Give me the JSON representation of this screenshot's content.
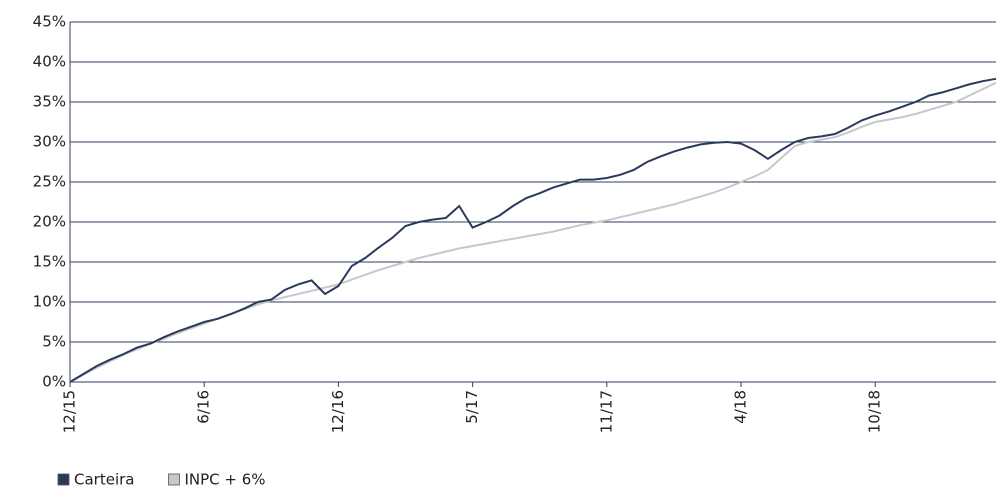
{
  "chart_data": {
    "type": "line",
    "categories": [
      "12/15",
      null,
      null,
      null,
      null,
      null,
      null,
      null,
      null,
      null,
      "6/16",
      null,
      null,
      null,
      null,
      null,
      null,
      null,
      null,
      null,
      "12/16",
      null,
      null,
      null,
      null,
      null,
      null,
      null,
      null,
      null,
      "5/17",
      null,
      null,
      null,
      null,
      null,
      null,
      null,
      null,
      null,
      "11/17",
      null,
      null,
      null,
      null,
      null,
      null,
      null,
      null,
      null,
      "4/18",
      null,
      null,
      null,
      null,
      null,
      null,
      null,
      null,
      null,
      "10/18",
      null,
      null,
      null,
      null,
      null,
      null,
      null,
      null,
      null
    ],
    "series": [
      {
        "name": "Carteira",
        "color": "#2b3a5c",
        "values": [
          0,
          1.0,
          2.0,
          2.8,
          3.5,
          4.3,
          4.8,
          5.6,
          6.3,
          6.9,
          7.5,
          7.9,
          8.5,
          9.2,
          10.0,
          10.3,
          11.5,
          12.2,
          12.7,
          11.0,
          12.0,
          14.5,
          15.5,
          16.8,
          18.0,
          19.5,
          20.0,
          20.3,
          20.5,
          22.0,
          19.3,
          20.0,
          20.8,
          22.0,
          23.0,
          23.6,
          24.3,
          24.8,
          25.3,
          25.3,
          25.5,
          25.9,
          26.5,
          27.5,
          28.2,
          28.8,
          29.3,
          29.7,
          29.9,
          30.0,
          29.8,
          29.0,
          27.9,
          29.0,
          30.0,
          30.5,
          30.7,
          31.0,
          31.8,
          32.7,
          33.3,
          33.8,
          34.4,
          35.0,
          35.8,
          36.2,
          36.7,
          37.2,
          37.6,
          37.9
        ]
      },
      {
        "name": "INPC + 6%",
        "color": "#c8c8c8",
        "values": [
          0,
          0.9,
          1.8,
          2.6,
          3.4,
          4.1,
          4.8,
          5.4,
          6.1,
          6.7,
          7.3,
          7.9,
          8.5,
          9.1,
          9.7,
          10.2,
          10.6,
          11.0,
          11.4,
          11.8,
          12.2,
          12.8,
          13.4,
          14.0,
          14.5,
          15.0,
          15.5,
          15.9,
          16.3,
          16.7,
          17.0,
          17.3,
          17.6,
          17.9,
          18.2,
          18.5,
          18.8,
          19.2,
          19.6,
          19.9,
          20.2,
          20.6,
          21.0,
          21.4,
          21.8,
          22.2,
          22.7,
          23.2,
          23.7,
          24.3,
          25.0,
          25.7,
          26.5,
          28.0,
          29.5,
          30.0,
          30.3,
          30.6,
          31.2,
          31.9,
          32.5,
          32.8,
          33.1,
          33.5,
          34.0,
          34.5,
          35.0,
          35.8,
          36.6,
          37.4
        ]
      }
    ],
    "ylim": [
      0,
      45
    ],
    "yticks": [
      {
        "value": 0,
        "label": "0%"
      },
      {
        "value": 5,
        "label": "5%"
      },
      {
        "value": 10,
        "label": "10%"
      },
      {
        "value": 15,
        "label": "15%"
      },
      {
        "value": 20,
        "label": "20%"
      },
      {
        "value": 25,
        "label": "25%"
      },
      {
        "value": 30,
        "label": "30%"
      },
      {
        "value": 35,
        "label": "35%"
      },
      {
        "value": 40,
        "label": "40%"
      },
      {
        "value": 45,
        "label": "45%"
      }
    ],
    "grid": true
  }
}
